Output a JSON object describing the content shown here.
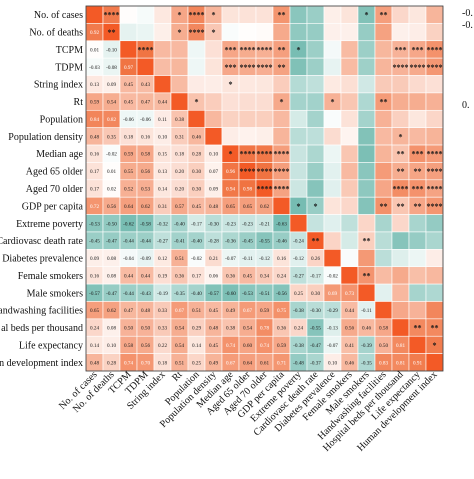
{
  "chart_data": {
    "type": "heatmap",
    "title": "",
    "variables": [
      "No. of cases",
      "No. of deaths",
      "TCPM",
      "TDPM",
      "String index",
      "Rt",
      "Population",
      "Population density",
      "Median age",
      "Aged 65 older",
      "Aged 70 older",
      "GDP per capita",
      "Extreme poverty",
      "Cardiovasc death rate",
      "Diabetes prevalence",
      "Female smokers",
      "Male smokers",
      "Handwashing facilities",
      "Hospital beds per thousand",
      "Life expectancy",
      "Human development index"
    ],
    "row_labels_visible": [
      "No. of cases",
      "No. of deaths",
      "TCPM",
      "TDPM",
      "String index",
      "Rt",
      "Population",
      "Population density",
      "Median age",
      "Aged 65 older",
      "Aged 70 older",
      "GDP per capita",
      "Extreme poverty",
      "Cardiovasc death rate",
      "Diabetes prevalence",
      "Female smokers",
      "Male smokers",
      "andwashing facilities",
      "al beds per thousand",
      "Life expectancy",
      "n development index"
    ],
    "col_labels_visible": [
      "No. of cases",
      "No. of deaths",
      "TCPM",
      "TDPM",
      "String index",
      "Rt",
      "Population",
      "Population density",
      "Median age",
      "Aged 65 older",
      "Aged 70 older",
      "GDP per capita",
      "Extreme poverty",
      "Cardiovasc death rate",
      "Diabetes prevalence",
      "Female smokers",
      "Male smokers",
      "Handwashing facilities",
      "Hospital beds per thousand",
      "Life expectancy",
      "Human development index"
    ],
    "lower_triangle_values": [
      [],
      [
        "0.92"
      ],
      [
        "0.01",
        "-0.10"
      ],
      [
        "-0.03",
        "-0.08",
        "0.97"
      ],
      [
        "0.13",
        "0.09",
        "0.45",
        "0.43"
      ],
      [
        "0.59",
        "0.54",
        "0.45",
        "0.47",
        "0.44"
      ],
      [
        "0.84",
        "0.82",
        "-0.06",
        "-0.06",
        "0.11",
        "0.38"
      ],
      [
        "0.48",
        "0.35",
        "0.18",
        "0.16",
        "0.10",
        "0.31",
        "0.46"
      ],
      [
        "0.16",
        "-0.02",
        "0.59",
        "0.58",
        "0.15",
        "0.18",
        "0.28",
        "0.10"
      ],
      [
        "0.17",
        "0.01",
        "0.55",
        "0.56",
        "0.13",
        "0.20",
        "0.30",
        "0.07",
        "0.96"
      ],
      [
        "0.17",
        "0.02",
        "0.52",
        "0.53",
        "0.14",
        "0.20",
        "0.30",
        "0.09",
        "0.94",
        "0.98"
      ],
      [
        "0.72",
        "0.56",
        "0.64",
        "0.62",
        "0.31",
        "0.57",
        "0.45",
        "0.48",
        "0.65",
        "0.65",
        "0.62"
      ],
      [
        "-0.53",
        "-0.50",
        "-0.62",
        "-0.58",
        "-0.32",
        "-0.40",
        "-0.17",
        "-0.30",
        "-0.23",
        "-0.23",
        "-0.21",
        "-0.63"
      ],
      [
        "-0.45",
        "-0.47",
        "-0.44",
        "-0.44",
        "-0.27",
        "-0.41",
        "-0.40",
        "-0.28",
        "-0.36",
        "-0.45",
        "-0.55",
        "-0.46",
        "-0.24"
      ],
      [
        "0.09",
        "0.08",
        "-0.04",
        "-0.09",
        "0.12",
        "0.51",
        "-0.02",
        "0.21",
        "-0.07",
        "-0.11",
        "-0.12",
        "0.16",
        "-0.12",
        "0.26"
      ],
      [
        "0.16",
        "0.08",
        "0.44",
        "0.44",
        "0.19",
        "0.36",
        "0.17",
        "0.06",
        "0.36",
        "0.45",
        "0.34",
        "0.24",
        "-0.27",
        "-0.17",
        "-0.02"
      ],
      [
        "-0.57",
        "-0.47",
        "-0.44",
        "-0.43",
        "-0.19",
        "-0.35",
        "-0.40",
        "-0.57",
        "-0.60",
        "-0.53",
        "-0.51",
        "-0.56",
        "0.25",
        "0.30",
        "0.69",
        "0.73"
      ],
      [
        "0.65",
        "0.62",
        "0.47",
        "0.48",
        "0.33",
        "0.67",
        "0.51",
        "0.45",
        "0.49",
        "0.67",
        "0.59",
        "0.75",
        "-0.38",
        "-0.30",
        "-0.29",
        "0.44",
        "-0.11"
      ],
      [
        "0.24",
        "0.08",
        "0.50",
        "0.50",
        "0.33",
        "0.54",
        "0.29",
        "0.48",
        "0.38",
        "0.54",
        "0.78",
        "0.36",
        "0.24",
        "-0.55",
        "-0.13",
        "0.56",
        "0.46",
        "0.58"
      ],
      [
        "0.14",
        "0.10",
        "0.58",
        "0.56",
        "0.22",
        "0.54",
        "0.14",
        "0.45",
        "0.74",
        "0.60",
        "0.74",
        "0.59",
        "-0.38",
        "-0.47",
        "-0.07",
        "0.41",
        "-0.39",
        "0.50",
        "0.81"
      ],
      [
        "0.48",
        "0.28",
        "0.74",
        "0.70",
        "0.18",
        "0.51",
        "0.25",
        "0.49",
        "0.67",
        "0.64",
        "0.61",
        "0.71",
        "-0.48",
        "-0.37",
        "0.10",
        "0.46",
        "-0.35",
        "0.83",
        "0.81",
        "0.91"
      ]
    ],
    "upper_triangle_stars": [
      [
        "",
        "****",
        "",
        "",
        "",
        "*",
        "****",
        "*",
        "",
        "",
        "",
        "**",
        "",
        "",
        "",
        "",
        "*",
        "**",
        "",
        "",
        ""
      ],
      [
        "",
        "",
        "",
        "",
        "",
        "*",
        "****",
        "*",
        "",
        "",
        "",
        "",
        "",
        "",
        "",
        "",
        "",
        "",
        "",
        "",
        ""
      ],
      [
        "",
        "",
        "",
        "****",
        "",
        "",
        "",
        "",
        "***",
        "****",
        "****",
        "**",
        "*",
        "",
        "",
        "",
        "",
        "",
        "***",
        "***",
        "****"
      ],
      [
        "",
        "",
        "",
        "",
        "",
        "",
        "",
        "",
        "***",
        "****",
        "****",
        "**",
        "",
        "",
        "",
        "",
        "",
        "",
        "****",
        "****",
        "****"
      ],
      [
        "",
        "",
        "",
        "",
        "",
        "",
        "",
        "",
        "*",
        "",
        "",
        "",
        "",
        "",
        "",
        "",
        "",
        "",
        "",
        "",
        ""
      ],
      [
        "",
        "",
        "",
        "",
        "",
        "",
        "*",
        "",
        "",
        "",
        "",
        "*",
        "",
        "",
        "*",
        "",
        "",
        "**",
        "",
        "",
        ""
      ],
      [
        "",
        "",
        "",
        "",
        "",
        "",
        "",
        "",
        "",
        "",
        "",
        "",
        "",
        "",
        "",
        "",
        "",
        "",
        "",
        "",
        ""
      ],
      [
        "",
        "",
        "",
        "",
        "",
        "",
        "",
        "",
        "",
        "",
        "",
        "",
        "",
        "",
        "",
        "",
        "",
        "",
        "*",
        "",
        ""
      ],
      [
        "",
        "",
        "",
        "",
        "",
        "",
        "",
        "",
        "",
        "****",
        "****",
        "****",
        "",
        "",
        "",
        "",
        "",
        "",
        "**",
        "***",
        "****"
      ],
      [
        "",
        "",
        "",
        "",
        "",
        "",
        "",
        "",
        "",
        "",
        "****",
        "****",
        "",
        "",
        "",
        "",
        "",
        "",
        "**",
        "**",
        "****"
      ],
      [
        "",
        "",
        "",
        "",
        "",
        "",
        "",
        "",
        "",
        "",
        "",
        "****",
        "",
        "",
        "",
        "",
        "",
        "",
        "****",
        "***",
        "****"
      ],
      [
        "",
        "",
        "",
        "",
        "",
        "",
        "",
        "",
        "",
        "",
        "",
        "",
        "*",
        "*",
        "",
        "",
        "",
        "**",
        "**",
        "**",
        "****"
      ],
      [
        "",
        "",
        "",
        "",
        "",
        "",
        "",
        "",
        "",
        "",
        "",
        "",
        "",
        "",
        "",
        "",
        "",
        "",
        "",
        "",
        ""
      ],
      [
        "",
        "",
        "",
        "",
        "",
        "",
        "",
        "",
        "",
        "",
        "",
        "",
        "",
        "",
        "",
        "",
        "**",
        "",
        "",
        "",
        ""
      ],
      [
        "",
        "",
        "",
        "",
        "",
        "",
        "",
        "",
        "",
        "",
        "",
        "",
        "",
        "",
        "",
        "",
        "",
        "",
        "",
        "",
        ""
      ],
      [
        "",
        "",
        "",
        "",
        "",
        "",
        "",
        "",
        "",
        "",
        "",
        "",
        "",
        "",
        "",
        "",
        "**",
        "",
        "",
        "",
        ""
      ],
      [
        "",
        "",
        "",
        "",
        "",
        "",
        "",
        "",
        "",
        "",
        "",
        "",
        "",
        "",
        "",
        "",
        "",
        "",
        "",
        "",
        ""
      ],
      [
        "",
        "",
        "",
        "",
        "",
        "",
        "",
        "",
        "",
        "",
        "",
        "",
        "",
        "",
        "",
        "",
        "",
        "",
        "",
        "",
        ""
      ],
      [
        "",
        "",
        "",
        "",
        "",
        "",
        "",
        "",
        "",
        "",
        "",
        "",
        "",
        "",
        "",
        "",
        "",
        "",
        "",
        "**",
        "**"
      ],
      [
        "",
        "",
        "",
        "",
        "",
        "",
        "",
        "",
        "",
        "",
        "",
        "",
        "",
        "",
        "",
        "",
        "",
        "",
        "",
        "",
        "*"
      ],
      [
        "",
        "",
        "",
        "",
        "",
        "",
        "",
        "",
        "",
        "",
        "",
        "",
        "",
        "",
        "",
        "",
        "",
        "",
        "",
        "",
        ""
      ]
    ],
    "diagonal_marks": [
      "",
      "**",
      "",
      "",
      "",
      "",
      "",
      "",
      "*",
      "****",
      "****",
      "",
      "",
      "**",
      "",
      "",
      "",
      "",
      "",
      "",
      ""
    ],
    "colorbar": {
      "tick_labels_visible": [
        "-0.",
        "-0.",
        "0."
      ]
    },
    "colors": {
      "positive": "#f0703e",
      "negative": "#2f9a8a",
      "neutral": "#ffffff",
      "diagonal": "#f35a26"
    }
  }
}
